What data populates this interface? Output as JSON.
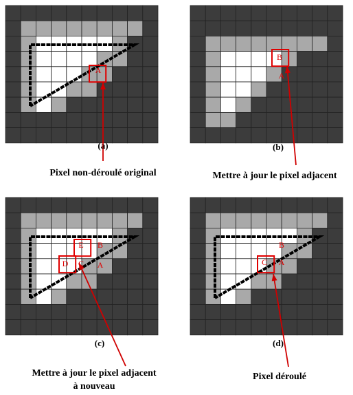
{
  "panels": [
    {
      "label": "(a)",
      "caption": [
        "Pixel non-déroulé original"
      ],
      "letters": [
        "A"
      ]
    },
    {
      "label": "(b)",
      "caption": [
        "Mettre à jour le pixel adjacent"
      ],
      "letters": [
        "B",
        "A"
      ]
    },
    {
      "label": "(c)",
      "caption": [
        "Mettre à jour le pixel adjacent",
        "à nouveau"
      ],
      "letters": [
        "E",
        "B",
        "D",
        "C",
        "A"
      ]
    },
    {
      "label": "(d)",
      "caption": [
        "Pixel déroulé"
      ],
      "letters": [
        "B",
        "C",
        "A"
      ]
    }
  ]
}
